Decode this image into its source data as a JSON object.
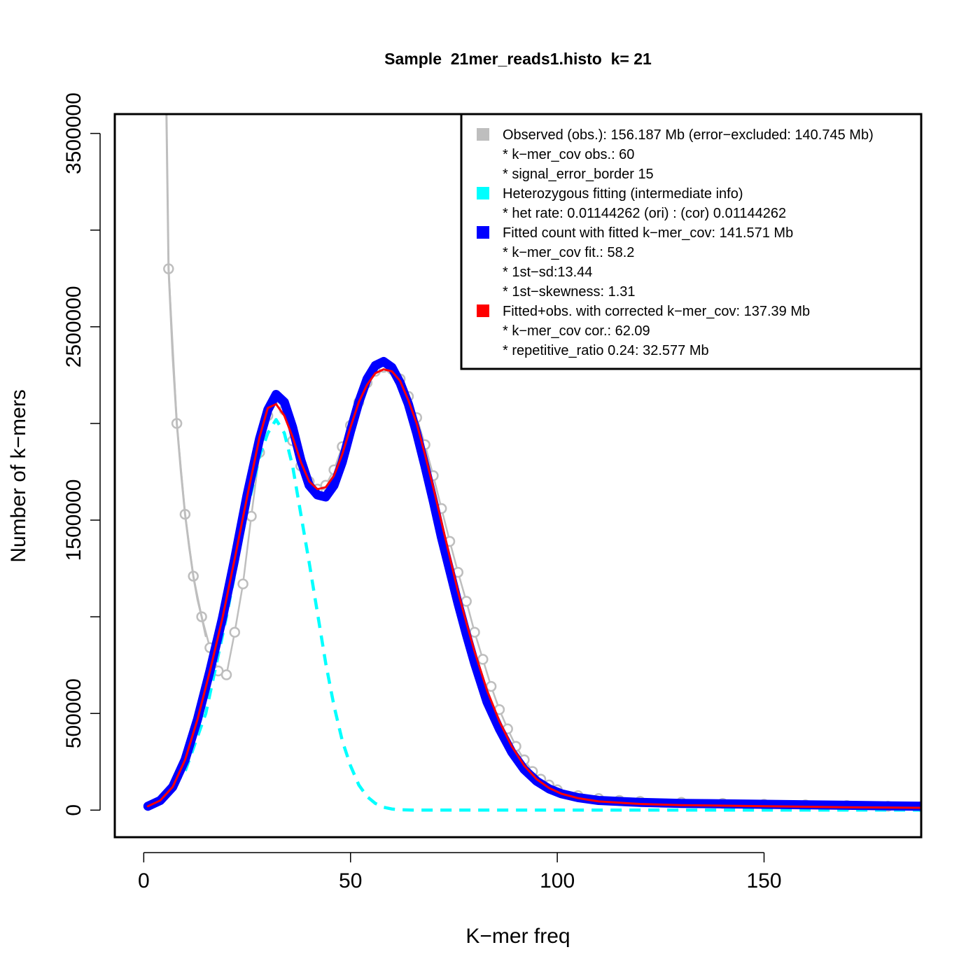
{
  "chart_data": {
    "type": "line",
    "title": "Sample  21mer_reads1.histo  k= 21",
    "xlabel": "K−mer freq",
    "ylabel": "Number of k−mers",
    "xlim": [
      -7,
      188
    ],
    "ylim": [
      -140000,
      3600000
    ],
    "x_ticks": [
      0,
      50,
      100,
      150
    ],
    "x_tick_labels": [
      "0",
      "50",
      "100",
      "150"
    ],
    "y_ticks": [
      0,
      500000,
      1000000,
      1500000,
      2000000,
      2500000,
      3000000,
      3500000
    ],
    "y_tick_labels": [
      "0",
      "500000",
      "",
      "1500000",
      "",
      "2500000",
      "",
      "3500000"
    ],
    "grid": false,
    "legend_position": "top-right",
    "legend": [
      {
        "kind": "swatch",
        "color": "#bebebe",
        "text": "Observed (obs.): 156.187 Mb (error−excluded: 140.745 Mb)"
      },
      {
        "kind": "text",
        "text": "* k−mer_cov obs.: 60"
      },
      {
        "kind": "text",
        "text": "* signal_error_border 15"
      },
      {
        "kind": "swatch",
        "color": "#00ffff",
        "text": "Heterozygous fitting (intermediate info)"
      },
      {
        "kind": "text",
        "text": "* het rate: 0.01144262 (ori) : (cor) 0.01144262"
      },
      {
        "kind": "swatch",
        "color": "#0000ff",
        "text": "Fitted count with fitted k−mer_cov: 141.571 Mb"
      },
      {
        "kind": "text",
        "text": "* k−mer_cov fit.: 58.2"
      },
      {
        "kind": "text",
        "text": "* 1st−sd:13.44"
      },
      {
        "kind": "text",
        "text": "* 1st−skewness: 1.31"
      },
      {
        "kind": "swatch",
        "color": "#ff0000",
        "text": "Fitted+obs. with corrected k−mer_cov: 137.39 Mb"
      },
      {
        "kind": "text",
        "text": "* k−mer_cov cor.: 62.09"
      },
      {
        "kind": "text",
        "text": "* repetitive_ratio 0.24: 32.577 Mb"
      }
    ],
    "series": [
      {
        "color": "#bebebe",
        "style": "points-line",
        "x": [
          6,
          8,
          10,
          12,
          14,
          16,
          18,
          20,
          22,
          24,
          26,
          28,
          30,
          32,
          34,
          36,
          38,
          40,
          42,
          44,
          46,
          48,
          50,
          52,
          54,
          56,
          58,
          60,
          62,
          64,
          66,
          68,
          70,
          72,
          74,
          76,
          78,
          80,
          82,
          84,
          86,
          88,
          90,
          92,
          94,
          96,
          98,
          100,
          105,
          110,
          115,
          120,
          130,
          140,
          150,
          160,
          170,
          180,
          188
        ],
        "y": [
          2800000,
          2000000,
          1530000,
          1210000,
          1000000,
          840000,
          720000,
          700000,
          920000,
          1170000,
          1520000,
          1850000,
          2040000,
          2130000,
          2070000,
          1910000,
          1780000,
          1700000,
          1660000,
          1680000,
          1760000,
          1880000,
          1990000,
          2110000,
          2210000,
          2270000,
          2290000,
          2280000,
          2230000,
          2140000,
          2030000,
          1890000,
          1730000,
          1560000,
          1390000,
          1230000,
          1080000,
          920000,
          780000,
          640000,
          520000,
          420000,
          330000,
          260000,
          200000,
          160000,
          130000,
          105000,
          75000,
          60000,
          50000,
          45000,
          40000,
          35000,
          30000,
          27000,
          24000,
          20000,
          18000
        ]
      },
      {
        "color": "#bebebe",
        "style": "line",
        "x": [
          5.5,
          6,
          7,
          8,
          9,
          10,
          11,
          12,
          13,
          14,
          15
        ],
        "y": [
          3600000,
          2800000,
          2350000,
          2000000,
          1750000,
          1530000,
          1360000,
          1210000,
          1090000,
          1000000,
          900000
        ]
      },
      {
        "color": "#00ffff",
        "style": "dashed",
        "x": [
          0,
          5,
          10,
          15,
          20,
          25,
          28,
          30,
          32,
          34,
          36,
          38,
          40,
          42,
          44,
          46,
          48,
          50,
          52,
          54,
          56,
          58,
          60,
          62,
          65,
          70,
          80,
          100,
          150,
          188
        ],
        "y": [
          20000,
          60000,
          200000,
          500000,
          1000000,
          1550000,
          1830000,
          1950000,
          2020000,
          1950000,
          1780000,
          1530000,
          1280000,
          1020000,
          760000,
          540000,
          360000,
          230000,
          130000,
          70000,
          35000,
          15000,
          6000,
          2000,
          500,
          0,
          0,
          0,
          0,
          0
        ]
      },
      {
        "color": "#0000ff",
        "style": "thick",
        "x": [
          1,
          4,
          7,
          10,
          13,
          16,
          19,
          22,
          25,
          28,
          30,
          32,
          34,
          36,
          38,
          40,
          42,
          44,
          46,
          48,
          50,
          52,
          54,
          56,
          58,
          60,
          62,
          64,
          66,
          68,
          70,
          72,
          74,
          76,
          78,
          80,
          83,
          86,
          89,
          92,
          95,
          98,
          101,
          105,
          110,
          120,
          130,
          150,
          170,
          188
        ],
        "y": [
          20000,
          50000,
          120000,
          260000,
          470000,
          720000,
          990000,
          1300000,
          1630000,
          1920000,
          2070000,
          2150000,
          2110000,
          1980000,
          1810000,
          1680000,
          1630000,
          1620000,
          1680000,
          1800000,
          1960000,
          2110000,
          2230000,
          2300000,
          2320000,
          2290000,
          2210000,
          2100000,
          1950000,
          1780000,
          1600000,
          1410000,
          1240000,
          1070000,
          910000,
          760000,
          560000,
          420000,
          300000,
          210000,
          150000,
          110000,
          85000,
          65000,
          50000,
          40000,
          35000,
          30000,
          25000,
          20000
        ]
      },
      {
        "color": "#ff0000",
        "style": "line",
        "x": [
          1,
          4,
          7,
          10,
          13,
          16,
          19,
          22,
          25,
          28,
          30,
          32,
          34,
          36,
          38,
          40,
          42,
          44,
          46,
          48,
          50,
          52,
          54,
          56,
          58,
          60,
          62,
          64,
          66,
          68,
          70,
          72,
          74,
          76,
          78,
          80,
          83,
          86,
          89,
          92,
          95,
          98,
          101,
          105,
          110,
          120,
          130,
          150,
          170,
          188
        ],
        "y": [
          20000,
          50000,
          120000,
          260000,
          470000,
          720000,
          990000,
          1300000,
          1620000,
          1930000,
          2080000,
          2100000,
          2040000,
          1930000,
          1800000,
          1700000,
          1660000,
          1670000,
          1730000,
          1840000,
          1980000,
          2110000,
          2200000,
          2260000,
          2280000,
          2270000,
          2220000,
          2120000,
          2000000,
          1840000,
          1670000,
          1490000,
          1310000,
          1130000,
          970000,
          820000,
          620000,
          460000,
          330000,
          230000,
          160000,
          115000,
          85000,
          62000,
          45000,
          32000,
          26000,
          20000,
          15000,
          12000
        ]
      }
    ]
  }
}
